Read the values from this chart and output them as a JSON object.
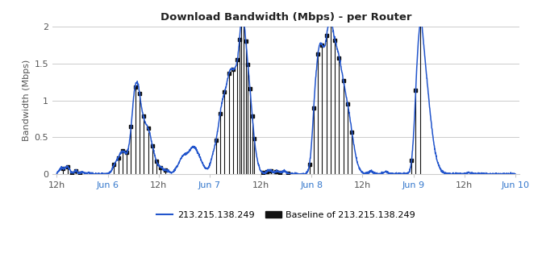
{
  "title": "Download Bandwidth (Mbps) - per Router",
  "ylabel": "Bandwidth (Mbps)",
  "ylim": [
    0,
    2.0
  ],
  "yticks": [
    0,
    0.5,
    1.0,
    1.5,
    2.0
  ],
  "ytick_labels": [
    "0",
    "0.5",
    "1",
    "1.5",
    "2"
  ],
  "line_color": "#2255cc",
  "baseline_color": "#111111",
  "background_color": "#ffffff",
  "grid_color": "#cccccc",
  "legend_line_label": "213.215.138.249",
  "legend_baseline_label": "Baseline of 213.215.138.249",
  "x_tick_labels": [
    "12h",
    "Jun 6",
    "12h",
    "Jun 7",
    "12h",
    "Jun 8",
    "12h",
    "Jun 9",
    "12h",
    "Jun 10"
  ],
  "x_tick_positions": [
    0,
    24,
    48,
    72,
    96,
    120,
    144,
    168,
    192,
    216
  ],
  "baseline_marker_times": [
    3,
    5,
    7,
    9,
    11,
    13,
    27,
    29,
    31,
    33,
    35,
    37,
    39,
    41,
    43,
    45,
    47,
    49,
    51,
    75,
    77,
    79,
    81,
    83,
    85,
    86,
    87,
    88,
    89,
    90,
    91,
    92,
    93,
    97,
    99,
    101,
    103,
    105,
    109,
    111,
    113,
    115,
    117,
    119,
    121,
    123,
    125,
    127,
    129,
    131,
    133,
    135,
    137,
    139,
    159,
    161,
    163,
    165,
    167,
    169,
    171
  ]
}
